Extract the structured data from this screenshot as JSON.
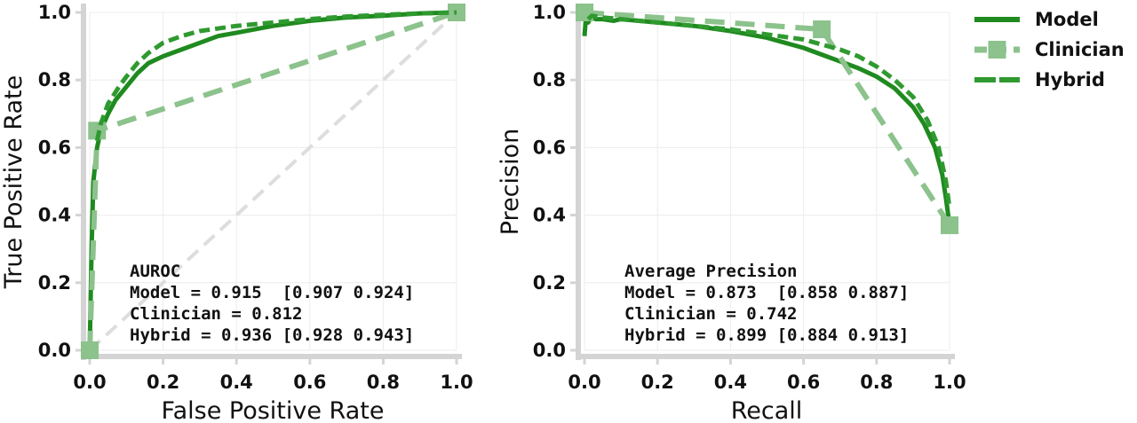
{
  "colors": {
    "model": "#1f8a1f",
    "clinician": "#8cc28c",
    "hybrid": "#2f9a2f",
    "chance": "#dddddd",
    "grid": "#ececec",
    "spine": "#d4d4d4"
  },
  "legend": {
    "placement": "right",
    "items": [
      {
        "label": "Model",
        "style": "solid"
      },
      {
        "label": "Clinician",
        "style": "dashed-square"
      },
      {
        "label": "Hybrid",
        "style": "dashed"
      }
    ]
  },
  "chart_data": [
    {
      "type": "line",
      "title": "",
      "xlabel": "False Positive Rate",
      "ylabel": "True Positive Rate",
      "xlim": [
        0,
        1
      ],
      "ylim": [
        0,
        1
      ],
      "xticks": [
        "0.0",
        "0.2",
        "0.4",
        "0.6",
        "0.8",
        "1.0"
      ],
      "yticks": [
        "0.0",
        "0.2",
        "0.4",
        "0.6",
        "0.8",
        "1.0"
      ],
      "grid": true,
      "reference_line": {
        "x": [
          0,
          1
        ],
        "y": [
          0,
          1
        ],
        "style": "dashed"
      },
      "series": [
        {
          "name": "Model",
          "x": [
            0,
            0.005,
            0.01,
            0.02,
            0.03,
            0.05,
            0.07,
            0.1,
            0.13,
            0.16,
            0.2,
            0.25,
            0.3,
            0.35,
            0.4,
            0.5,
            0.6,
            0.7,
            0.8,
            0.9,
            1.0
          ],
          "y": [
            0,
            0.3,
            0.5,
            0.6,
            0.65,
            0.7,
            0.74,
            0.78,
            0.82,
            0.85,
            0.87,
            0.89,
            0.91,
            0.93,
            0.94,
            0.96,
            0.975,
            0.985,
            0.99,
            0.997,
            1.0
          ]
        },
        {
          "name": "Clinician",
          "x": [
            0,
            0.02,
            1.0
          ],
          "y": [
            0,
            0.65,
            1.0
          ]
        },
        {
          "name": "Hybrid",
          "x": [
            0.02,
            0.03,
            0.05,
            0.08,
            0.1,
            0.13,
            0.16,
            0.2,
            0.25,
            0.3,
            0.4,
            0.5,
            0.6,
            0.7,
            0.8,
            0.9,
            1.0
          ],
          "y": [
            0.62,
            0.67,
            0.73,
            0.78,
            0.81,
            0.85,
            0.88,
            0.91,
            0.93,
            0.945,
            0.96,
            0.97,
            0.98,
            0.988,
            0.993,
            0.997,
            1.0
          ]
        }
      ],
      "annotation_lines": [
        "AUROC",
        "Model = 0.915  [0.907 0.924]",
        "Clinician = 0.812",
        "Hybrid = 0.936 [0.928 0.943]"
      ]
    },
    {
      "type": "line",
      "title": "",
      "xlabel": "Recall",
      "ylabel": "Precision",
      "xlim": [
        0,
        1
      ],
      "ylim": [
        0,
        1
      ],
      "xticks": [
        "0.0",
        "0.2",
        "0.4",
        "0.6",
        "0.8",
        "1.0"
      ],
      "yticks": [
        "0.0",
        "0.2",
        "0.4",
        "0.6",
        "0.8",
        "1.0"
      ],
      "grid": true,
      "series": [
        {
          "name": "Model",
          "x": [
            0,
            0.005,
            0.01,
            0.02,
            0.03,
            0.05,
            0.08,
            0.1,
            0.2,
            0.3,
            0.4,
            0.5,
            0.55,
            0.6,
            0.65,
            0.7,
            0.75,
            0.8,
            0.85,
            0.9,
            0.93,
            0.96,
            0.98,
            0.99,
            1.0
          ],
          "y": [
            0.93,
            1.0,
            0.97,
            0.99,
            0.98,
            0.98,
            0.975,
            0.98,
            0.97,
            0.96,
            0.945,
            0.925,
            0.91,
            0.895,
            0.875,
            0.855,
            0.835,
            0.81,
            0.775,
            0.72,
            0.67,
            0.6,
            0.52,
            0.45,
            0.37
          ]
        },
        {
          "name": "Clinician",
          "x": [
            0,
            0.65,
            1.0
          ],
          "y": [
            1.0,
            0.95,
            0.37
          ]
        },
        {
          "name": "Hybrid",
          "x": [
            0.01,
            0.02,
            0.05,
            0.1,
            0.2,
            0.3,
            0.4,
            0.5,
            0.6,
            0.65,
            0.7,
            0.75,
            0.8,
            0.85,
            0.9,
            0.94,
            0.97,
            0.99,
            1.0
          ],
          "y": [
            0.98,
            0.99,
            0.985,
            0.98,
            0.97,
            0.96,
            0.95,
            0.935,
            0.92,
            0.905,
            0.89,
            0.87,
            0.84,
            0.8,
            0.75,
            0.68,
            0.6,
            0.5,
            0.42
          ]
        }
      ],
      "annotation_lines": [
        "Average Precision",
        "Model = 0.873  [0.858 0.887]",
        "Clinician = 0.742",
        "Hybrid = 0.899 [0.884 0.913]"
      ]
    }
  ]
}
